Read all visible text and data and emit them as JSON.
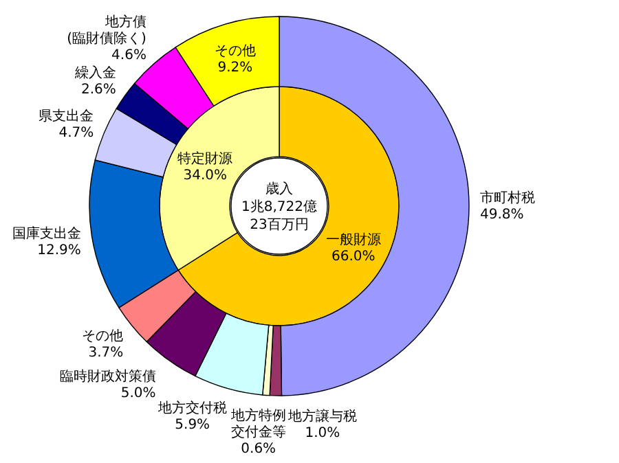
{
  "chart_data": [
    {
      "type": "donut",
      "title": "歳入\n1兆8,722億\n23百万円",
      "data_labels": true,
      "categories": [
        "一般財源",
        "特定財源"
      ],
      "values": [
        66.0,
        34.0
      ],
      "value_labels": [
        "66.0%",
        "34.0%"
      ],
      "colors": [
        "#ffcc00",
        "#ffff99"
      ]
    },
    {
      "type": "donut",
      "data_labels": true,
      "categories": [
        "市町村税",
        "地方譲与税",
        "地方特例交付金等",
        "地方交付税",
        "臨時財政対策債",
        "その他",
        "国庫支出金",
        "県支出金",
        "繰入金",
        "地方債(臨財債除く)",
        "その他"
      ],
      "values": [
        49.8,
        1.0,
        0.6,
        5.9,
        5.0,
        3.7,
        12.9,
        4.7,
        2.6,
        4.6,
        9.2
      ],
      "value_labels": [
        "49.8%",
        "1.0%",
        "0.6%",
        "5.9%",
        "5.0%",
        "3.7%",
        "12.9%",
        "4.7%",
        "2.6%",
        "4.6%",
        "9.2%"
      ],
      "colors": [
        "#9999ff",
        "#993366",
        "#ffffcc",
        "#ccffff",
        "#660066",
        "#ff8080",
        "#0066cc",
        "#ccccff",
        "#000080",
        "#ff00ff",
        "#ffff00"
      ]
    }
  ]
}
